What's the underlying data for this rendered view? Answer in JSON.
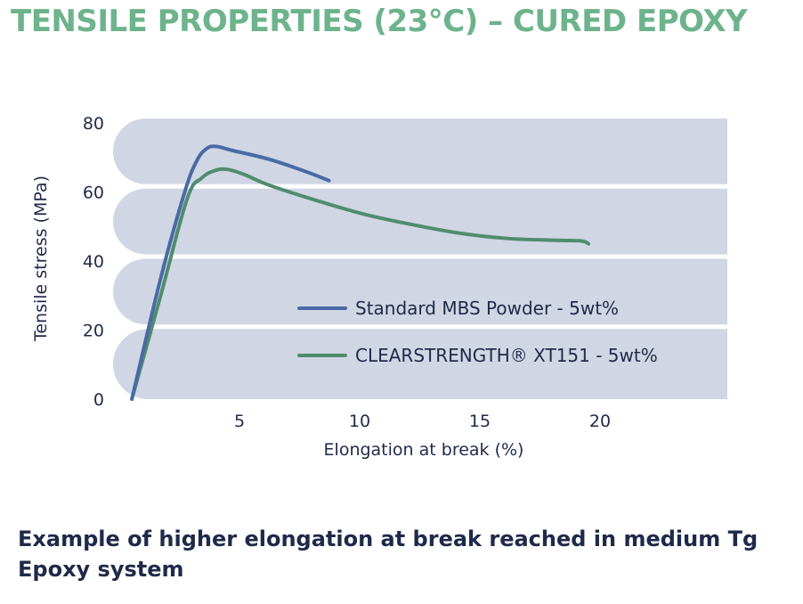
{
  "page": {
    "title": "TENSILE PROPERTIES (23°C) – CURED EPOXY",
    "caption": "Example of higher elongation at break reached in medium Tg Epoxy system"
  },
  "colors": {
    "title": "#6db38b",
    "text": "#1f2a4a",
    "band": "#d0d6e3",
    "series_blue": "#4a6aa5",
    "series_green": "#4f8c6e"
  },
  "chart_data": {
    "type": "line",
    "xlabel": "Elongation at break (%)",
    "ylabel": "Tensile stress (MPa)",
    "xlim": [
      0,
      25
    ],
    "ylim": [
      0,
      80
    ],
    "x_ticks": [
      5,
      10,
      15,
      20
    ],
    "y_ticks": [
      0,
      20,
      40,
      60,
      80
    ],
    "grid": "horizontal bands",
    "legend_position": "bottom-right inside plot",
    "series": [
      {
        "name": "Standard MBS Powder - 5wt%",
        "color": "#4a6aa5",
        "points": [
          [
            0.3,
            0
          ],
          [
            1.5,
            35
          ],
          [
            2.5,
            60
          ],
          [
            3.0,
            69
          ],
          [
            3.4,
            72.5
          ],
          [
            3.8,
            73.2
          ],
          [
            4.5,
            72
          ],
          [
            6,
            69.5
          ],
          [
            7.5,
            66
          ],
          [
            8.5,
            63.3
          ]
        ]
      },
      {
        "name": "CLEARSTRENGTH® XT151 - 5wt%",
        "color": "#4f8c6e",
        "points": [
          [
            0.3,
            0
          ],
          [
            1.5,
            30
          ],
          [
            2.6,
            58
          ],
          [
            3.2,
            64
          ],
          [
            3.8,
            66.3
          ],
          [
            4.3,
            66.5
          ],
          [
            5,
            65
          ],
          [
            6,
            62
          ],
          [
            8,
            57.5
          ],
          [
            10,
            53.5
          ],
          [
            12,
            50.5
          ],
          [
            14,
            48
          ],
          [
            16,
            46.5
          ],
          [
            18,
            46
          ],
          [
            19,
            45.8
          ],
          [
            19.3,
            45
          ]
        ]
      }
    ]
  }
}
